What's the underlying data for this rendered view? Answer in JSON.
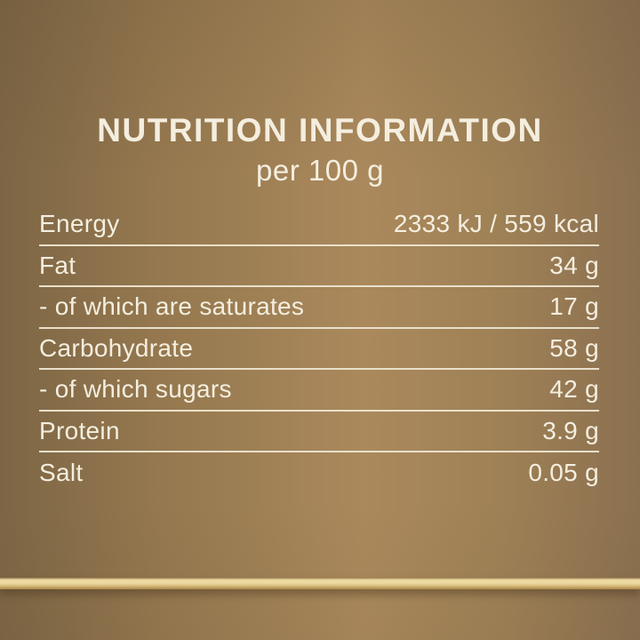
{
  "header": {
    "title": "NUTRITION INFORMATION",
    "subtitle": "per 100 g"
  },
  "table": {
    "rows": [
      {
        "label": "Energy",
        "value": "2333 kJ / 559 kcal"
      },
      {
        "label": "Fat",
        "value": "34 g"
      },
      {
        "label": "- of which are saturates",
        "value": "17 g"
      },
      {
        "label": "Carbohydrate",
        "value": "58 g"
      },
      {
        "label": "- of which sugars",
        "value": "42 g"
      },
      {
        "label": "Protein",
        "value": "3.9 g"
      },
      {
        "label": "Salt",
        "value": "0.05 g"
      }
    ]
  },
  "colors": {
    "background_edge": "#7d6645",
    "background_left_mid": "#95784f",
    "background_mid": "#aa895c",
    "background_right_mid": "#9f8156",
    "background_right": "#8b7050",
    "text": "#f4eedf",
    "divider": "#e9e0cb",
    "gold_top": "#9d8050",
    "gold_light": "#eddaa2",
    "gold_mid": "#d9bf80",
    "gold_bottom": "#aa8648"
  }
}
